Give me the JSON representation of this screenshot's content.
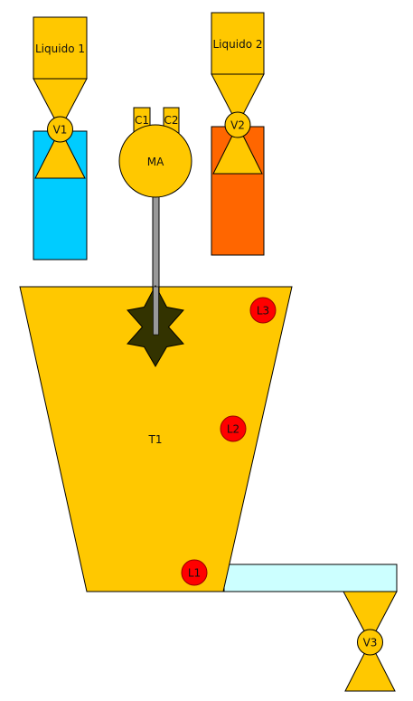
{
  "colors": {
    "yellow": "#FFC800",
    "liquid1": "#00CCFF",
    "liquid2": "#FF6600",
    "pipe": "#CCFFFF",
    "sensor": "#FF0000",
    "mixer_blade": "#333300",
    "shaft": "#999999"
  },
  "tanks": {
    "liquid1": {
      "label": "Liquido 1"
    },
    "liquid2": {
      "label": "Liquido 2"
    },
    "main": {
      "label": "T1"
    }
  },
  "valves": {
    "v1": {
      "label": "V1"
    },
    "v2": {
      "label": "V2"
    },
    "v3": {
      "label": "V3"
    }
  },
  "mixer": {
    "label": "MA",
    "contacts": [
      {
        "label": "C1"
      },
      {
        "label": "C2"
      }
    ]
  },
  "level_sensors": {
    "l1": {
      "label": "L1"
    },
    "l2": {
      "label": "L2"
    },
    "l3": {
      "label": "L3"
    }
  }
}
